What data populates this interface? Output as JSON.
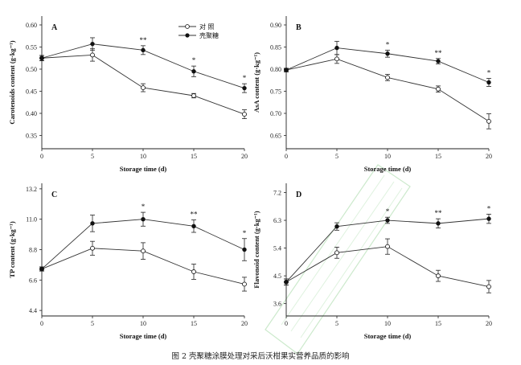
{
  "figure_caption": "图 2  壳聚糖涂膜处理对采后沃柑果实营养品质的影响",
  "legend": {
    "control_label": "对    照",
    "treatment_label": "壳聚糖"
  },
  "colors": {
    "line": "#333333",
    "filled": "#111111",
    "open_fill": "#ffffff",
    "watermark": "#8fd08f"
  },
  "chart_data": [
    {
      "panel": "A",
      "type": "line",
      "xlabel": "Storage time (d)",
      "ylabel": "Carotenoids content (g·kg⁻¹)",
      "x": [
        0,
        5,
        10,
        15,
        20
      ],
      "xticks": [
        "0",
        "5",
        "10",
        "15",
        "20"
      ],
      "ylim": [
        0.32,
        0.62
      ],
      "yticks": [
        0.35,
        0.4,
        0.45,
        0.5,
        0.55,
        0.6
      ],
      "ytick_labels": [
        "0.35",
        "0.40",
        "0.45",
        "0.50",
        "0.55",
        "0.60"
      ],
      "series": [
        {
          "name": "对照",
          "marker": "open",
          "values": [
            0.525,
            0.532,
            0.458,
            0.44,
            0.398
          ],
          "errors": [
            0.006,
            0.014,
            0.009,
            0.005,
            0.01
          ]
        },
        {
          "name": "壳聚糖",
          "marker": "filled",
          "values": [
            0.525,
            0.557,
            0.543,
            0.495,
            0.457
          ],
          "errors": [
            0.006,
            0.014,
            0.01,
            0.012,
            0.01
          ]
        }
      ],
      "annotations": [
        {
          "x": 10,
          "text": "**"
        },
        {
          "x": 15,
          "text": "*"
        },
        {
          "x": 20,
          "text": "*"
        }
      ]
    },
    {
      "panel": "B",
      "type": "line",
      "xlabel": "Storage time (d)",
      "ylabel": "AsA content (g·kg⁻¹)",
      "x": [
        0,
        5,
        10,
        15,
        20
      ],
      "xticks": [
        "0",
        "5",
        "10",
        "15",
        "20"
      ],
      "ylim": [
        0.62,
        0.92
      ],
      "yticks": [
        0.65,
        0.7,
        0.75,
        0.8,
        0.85,
        0.9
      ],
      "ytick_labels": [
        "0.65",
        "0.70",
        "0.75",
        "0.80",
        "0.85",
        "0.90"
      ],
      "series": [
        {
          "name": "对照",
          "marker": "open",
          "values": [
            0.798,
            0.823,
            0.781,
            0.755,
            0.682
          ],
          "errors": [
            0.004,
            0.01,
            0.007,
            0.007,
            0.017
          ]
        },
        {
          "name": "壳聚糖",
          "marker": "filled",
          "values": [
            0.798,
            0.848,
            0.835,
            0.818,
            0.77
          ],
          "errors": [
            0.004,
            0.015,
            0.008,
            0.006,
            0.009
          ]
        }
      ],
      "annotations": [
        {
          "x": 10,
          "text": "*"
        },
        {
          "x": 15,
          "text": "**"
        },
        {
          "x": 20,
          "text": "*"
        }
      ]
    },
    {
      "panel": "C",
      "type": "line",
      "xlabel": "Storage time (d)",
      "ylabel": "TP content (g·kg⁻¹)",
      "x": [
        0,
        5,
        10,
        15,
        20
      ],
      "xticks": [
        "0",
        "5",
        "10",
        "15",
        "20"
      ],
      "ylim": [
        4.0,
        13.6
      ],
      "yticks": [
        4.4,
        6.6,
        8.8,
        11.0,
        13.2
      ],
      "ytick_labels": [
        "4.4",
        "6.6",
        "8.8",
        "11.0",
        "13.2"
      ],
      "series": [
        {
          "name": "对照",
          "marker": "open",
          "values": [
            7.4,
            8.9,
            8.7,
            7.2,
            6.3
          ],
          "errors": [
            0.15,
            0.5,
            0.6,
            0.55,
            0.5
          ]
        },
        {
          "name": "壳聚糖",
          "marker": "filled",
          "values": [
            7.4,
            10.7,
            11.0,
            10.5,
            8.8
          ],
          "errors": [
            0.15,
            0.6,
            0.5,
            0.45,
            0.8
          ]
        }
      ],
      "annotations": [
        {
          "x": 10,
          "text": "*"
        },
        {
          "x": 15,
          "text": "**"
        },
        {
          "x": 20,
          "text": "*"
        }
      ]
    },
    {
      "panel": "D",
      "type": "line",
      "xlabel": "Storage time (d)",
      "ylabel": "Flavonoid content (g·kg⁻¹)",
      "x": [
        0,
        5,
        10,
        15,
        20
      ],
      "xticks": [
        "0",
        "5",
        "10",
        "15",
        "20"
      ],
      "ylim": [
        3.2,
        7.5
      ],
      "yticks": [
        3.6,
        4.5,
        5.4,
        6.3,
        7.2
      ],
      "ytick_labels": [
        "3.6",
        "4.5",
        "5.4",
        "6.3",
        "7.2"
      ],
      "series": [
        {
          "name": "对照",
          "marker": "open",
          "values": [
            4.3,
            5.25,
            5.45,
            4.5,
            4.15
          ],
          "errors": [
            0.1,
            0.18,
            0.25,
            0.18,
            0.2
          ]
        },
        {
          "name": "壳聚糖",
          "marker": "filled",
          "values": [
            4.3,
            6.1,
            6.3,
            6.2,
            6.35
          ],
          "errors": [
            0.1,
            0.12,
            0.1,
            0.15,
            0.15
          ]
        }
      ],
      "annotations": [
        {
          "x": 10,
          "text": "*"
        },
        {
          "x": 15,
          "text": "**"
        },
        {
          "x": 20,
          "text": "*"
        }
      ]
    }
  ]
}
